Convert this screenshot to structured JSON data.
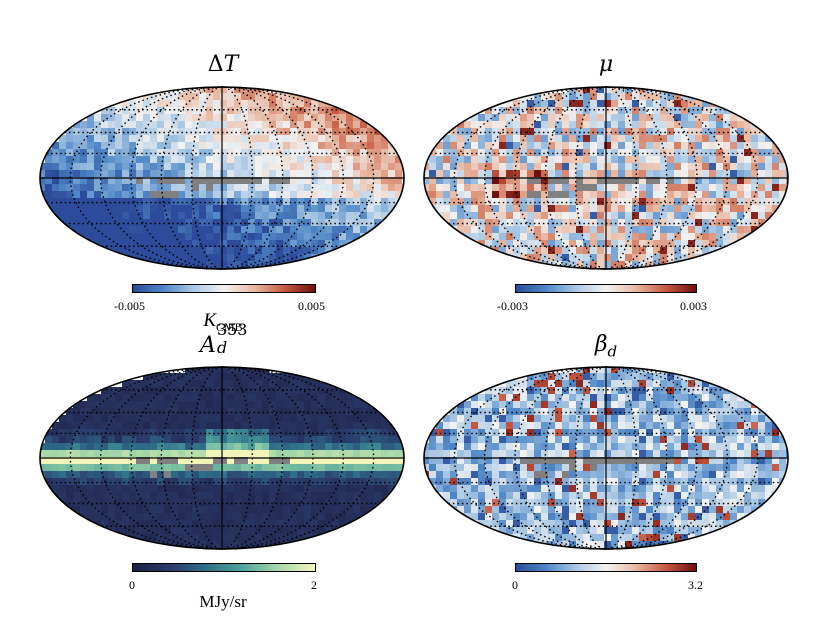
{
  "panels": [
    {
      "id": "dT",
      "title": "ΔT",
      "colorbar": {
        "min": "-0.005",
        "max": "0.005",
        "unit": "K_CMB",
        "colormap": "diverging-blue-white-red"
      }
    },
    {
      "id": "mu",
      "title": "μ",
      "colorbar": {
        "min": "-0.003",
        "max": "0.003",
        "unit": "",
        "colormap": "diverging-blue-white-red"
      }
    },
    {
      "id": "Ad",
      "title": "A_d^353",
      "colorbar": {
        "min": "0",
        "max": "2",
        "unit": "MJy/sr",
        "colormap": "navy-teal-yellow"
      }
    },
    {
      "id": "beta",
      "title": "β_d",
      "colorbar": {
        "min": "0",
        "max": "3.2",
        "unit": "",
        "colormap": "diverging-blue-white-red"
      }
    }
  ],
  "labels": {
    "dT_title_main": "Δ",
    "dT_title_var": "T",
    "mu_title": "μ",
    "Ad_title_main": "A",
    "Ad_title_sub": "d",
    "Ad_title_sup": "353",
    "beta_title_main": "β",
    "beta_title_sub": "d",
    "dT_cbar_min": "-0.005",
    "dT_cbar_max": "0.005",
    "dT_unit_main": "K",
    "dT_unit_sub": "CMB",
    "mu_cbar_min": "-0.003",
    "mu_cbar_max": "0.003",
    "Ad_cbar_min": "0",
    "Ad_cbar_max": "2",
    "Ad_unit": "MJy/sr",
    "beta_cbar_min": "0",
    "beta_cbar_max": "3.2"
  },
  "colors": {
    "diverging": [
      "#2c4b9a",
      "#4f86c6",
      "#a9c8e4",
      "#f2f2f2",
      "#e8b7a0",
      "#c65840",
      "#6e1010"
    ],
    "dust": [
      "#1d1f43",
      "#2a3b6b",
      "#2f6e8a",
      "#4fa59c",
      "#a7d9a9",
      "#f2f5b8"
    ],
    "masked": "#808080"
  }
}
